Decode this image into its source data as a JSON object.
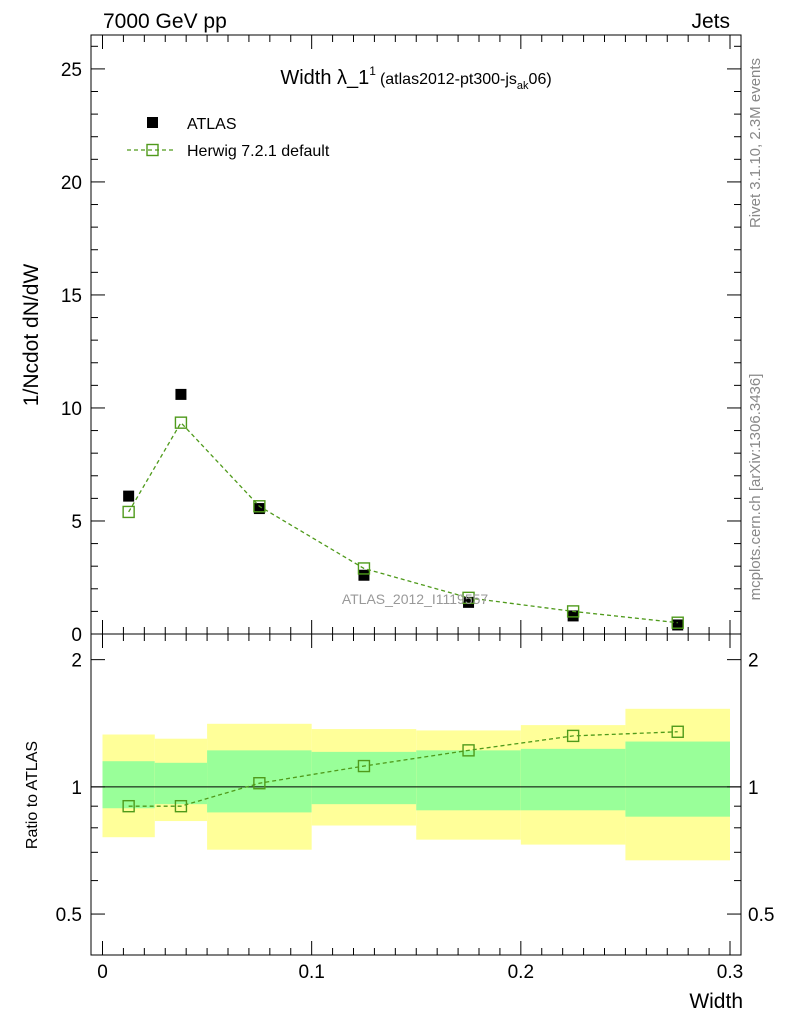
{
  "header": {
    "left": "7000 GeV pp",
    "right": "Jets"
  },
  "side_labels": {
    "rivet": "Rivet 3.1.10,  2.3M events",
    "mcplots": "mcplots.cern.ch [arXiv:1306.3436]"
  },
  "colors": {
    "data": "#000000",
    "mc": "#4f9a1b",
    "band_inner": "#99ff99",
    "band_outer": "#ffff99"
  },
  "chart_data": [
    {
      "type": "scatter",
      "panel": "main",
      "title_main": "Width λ_1",
      "title_sup": "1",
      "title_paren_open": "(atlas2012-pt300-js",
      "title_sub": "ak",
      "title_paren_close": "06)",
      "ylabel": "1/Ncdot dN/dW",
      "watermark": "ATLAS_2012_I1119557",
      "ylim": [
        0,
        26.5
      ],
      "yticks": [
        0,
        5,
        10,
        15,
        20,
        25
      ],
      "ytick_labels": [
        "0",
        "5",
        "10",
        "15",
        "20",
        "25"
      ],
      "legend_position": "top-left",
      "series": [
        {
          "name": "ATLAS",
          "marker": "filled-square",
          "x": [
            0.0125,
            0.0375,
            0.075,
            0.125,
            0.175,
            0.225,
            0.275
          ],
          "y": [
            6.1,
            10.6,
            5.55,
            2.6,
            1.4,
            0.8,
            0.4
          ]
        },
        {
          "name": "Herwig 7.2.1 default",
          "marker": "open-square",
          "line": "dashed",
          "x": [
            0.0125,
            0.0375,
            0.075,
            0.125,
            0.175,
            0.225,
            0.275
          ],
          "y": [
            5.4,
            9.35,
            5.65,
            2.9,
            1.6,
            1.0,
            0.5
          ]
        }
      ]
    },
    {
      "type": "line",
      "panel": "ratio",
      "ylabel": "Ratio to ATLAS",
      "xlabel": "Width",
      "xlim": [
        0,
        0.3
      ],
      "xticks": [
        0,
        0.1,
        0.2,
        0.3
      ],
      "xtick_labels": [
        "0",
        "0.1",
        "0.2",
        "0.3"
      ],
      "ylim": [
        0.4,
        2.3
      ],
      "yscale": "log",
      "yticks": [
        0.5,
        1,
        2
      ],
      "ytick_labels": [
        "0.5",
        "1",
        "2"
      ],
      "bins": [
        {
          "lo": 0.0,
          "hi": 0.025,
          "inner": [
            0.89,
            1.15
          ],
          "outer": [
            0.76,
            1.33
          ]
        },
        {
          "lo": 0.025,
          "hi": 0.05,
          "inner": [
            0.91,
            1.14
          ],
          "outer": [
            0.83,
            1.3
          ]
        },
        {
          "lo": 0.05,
          "hi": 0.1,
          "inner": [
            0.87,
            1.22
          ],
          "outer": [
            0.71,
            1.41
          ]
        },
        {
          "lo": 0.1,
          "hi": 0.15,
          "inner": [
            0.91,
            1.21
          ],
          "outer": [
            0.81,
            1.37
          ]
        },
        {
          "lo": 0.15,
          "hi": 0.2,
          "inner": [
            0.88,
            1.22
          ],
          "outer": [
            0.75,
            1.36
          ]
        },
        {
          "lo": 0.2,
          "hi": 0.25,
          "inner": [
            0.88,
            1.23
          ],
          "outer": [
            0.73,
            1.4
          ]
        },
        {
          "lo": 0.25,
          "hi": 0.3,
          "inner": [
            0.85,
            1.28
          ],
          "outer": [
            0.67,
            1.53
          ]
        }
      ],
      "series": [
        {
          "name": "Herwig 7.2.1 default",
          "x": [
            0.0125,
            0.0375,
            0.075,
            0.125,
            0.175,
            0.225,
            0.275
          ],
          "y": [
            0.9,
            0.9,
            1.02,
            1.12,
            1.22,
            1.32,
            1.35
          ]
        }
      ]
    }
  ]
}
